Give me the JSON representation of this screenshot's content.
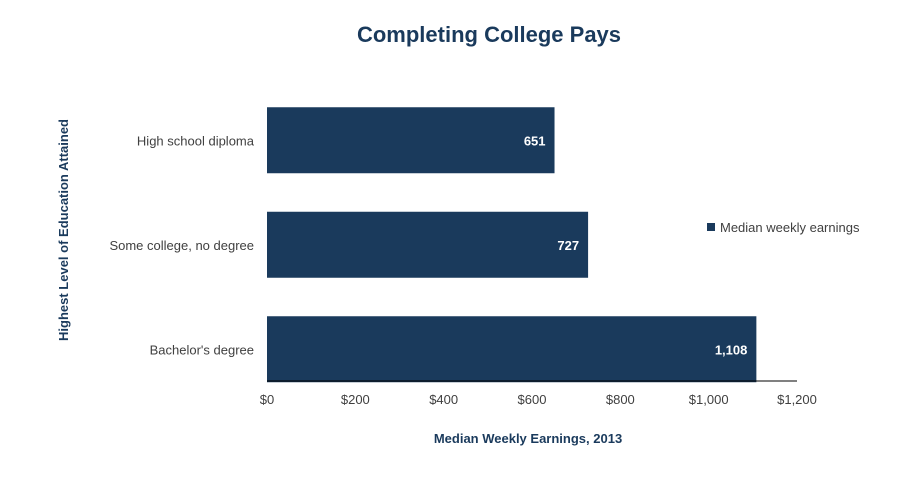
{
  "chart_data": {
    "type": "bar",
    "orientation": "horizontal",
    "title": "Completing College Pays",
    "xlabel": "Median Weekly Earnings, 2013",
    "ylabel": "Highest Level of Education Attained",
    "categories": [
      "High school diploma",
      "Some college, no degree",
      "Bachelor's degree"
    ],
    "series": [
      {
        "name": "Median weekly earnings",
        "values": [
          651,
          727,
          1108
        ],
        "data_labels": [
          "651",
          "727",
          "1,108"
        ],
        "color": "#1a3a5c"
      }
    ],
    "xlim": [
      0,
      1200
    ],
    "x_ticks": [
      0,
      200,
      400,
      600,
      800,
      1000,
      1200
    ],
    "x_tick_labels": [
      "$0",
      "$200",
      "$400",
      "$600",
      "$800",
      "$1,000",
      "$1,200"
    ],
    "grid": false,
    "legend_position": "right"
  },
  "colors": {
    "bar": "#1a3a5c",
    "title": "#1a3a5c",
    "text": "#404040",
    "axis": "#000000"
  }
}
